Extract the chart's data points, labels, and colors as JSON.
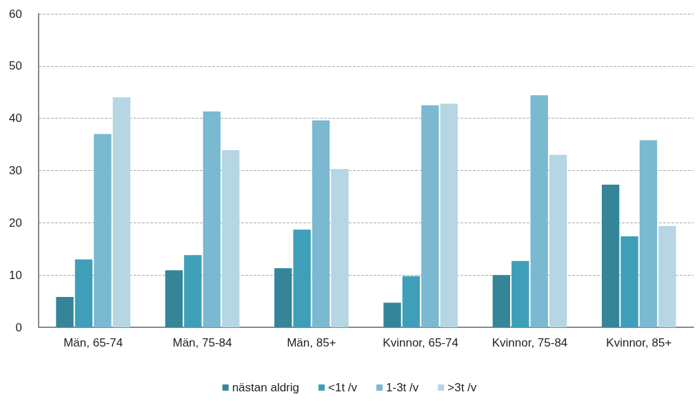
{
  "chart_data": {
    "type": "bar",
    "categories": [
      "Män, 65-74",
      "Män, 75-84",
      "Män, 85+",
      "Kvinnor, 65-74",
      "Kvinnor, 75-84",
      "Kvinnor, 85+"
    ],
    "series": [
      {
        "name": "nästan aldrig",
        "color": "#358599",
        "values": [
          5.8,
          10.9,
          11.3,
          4.7,
          10,
          27.3
        ]
      },
      {
        "name": "<1t /v",
        "color": "#3f9fb8",
        "values": [
          13,
          13.8,
          18.7,
          9.8,
          12.7,
          17.4
        ]
      },
      {
        "name": "1-3t /v",
        "color": "#7ab9d0",
        "values": [
          37,
          41.3,
          39.6,
          42.5,
          44.4,
          35.8
        ]
      },
      {
        "name": ">3t /v",
        "color": "#b5d6e2",
        "values": [
          44,
          33.9,
          30.3,
          42.8,
          33,
          19.4
        ]
      }
    ],
    "ylim": [
      0,
      60
    ],
    "yticks": [
      0,
      10,
      20,
      30,
      40,
      50,
      60
    ],
    "grid": "y",
    "legend": "bottom"
  }
}
